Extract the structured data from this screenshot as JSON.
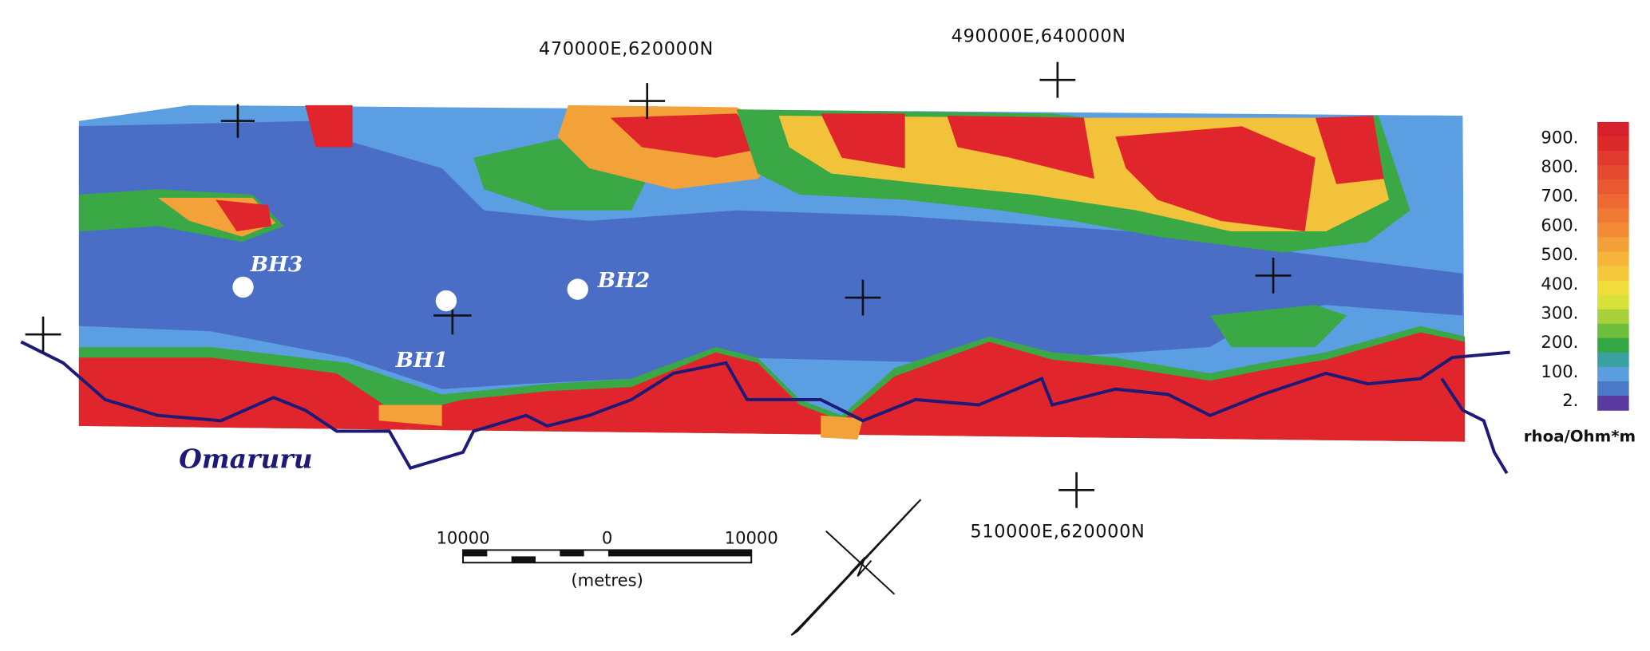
{
  "coordinates": [
    "470000E,620000N",
    "490000E,640000N",
    "510000E,620000N"
  ],
  "boreholes": [
    "BH3",
    "BH1",
    "BH2"
  ],
  "river": "Omaruru",
  "scale_bar": {
    "labels": [
      "10000",
      "0",
      "10000"
    ],
    "unit": "(metres)"
  },
  "legend": {
    "ticks": [
      {
        "value": 900,
        "label": "900."
      },
      {
        "value": 800,
        "label": "800."
      },
      {
        "value": 700,
        "label": "700."
      },
      {
        "value": 600,
        "label": "600."
      },
      {
        "value": 500,
        "label": "500."
      },
      {
        "value": 400,
        "label": "400."
      },
      {
        "value": 300,
        "label": "300."
      },
      {
        "value": 200,
        "label": "200."
      },
      {
        "value": 100,
        "label": "100."
      },
      {
        "value": 2,
        "label": "2."
      }
    ],
    "colors": [
      "#d8202c",
      "#dc2a2a",
      "#e23a2e",
      "#e64a2e",
      "#ea5a30",
      "#ee6a32",
      "#f07a34",
      "#f28a36",
      "#f4a038",
      "#f6b43a",
      "#f4c83a",
      "#f0dc3a",
      "#d8e03a",
      "#a8d03a",
      "#6cbe3c",
      "#34a844",
      "#3aa0a0",
      "#5a9ee0",
      "#4c78c8",
      "#5a3aa0"
    ],
    "unit": "rhoa/Ohm*m"
  }
}
